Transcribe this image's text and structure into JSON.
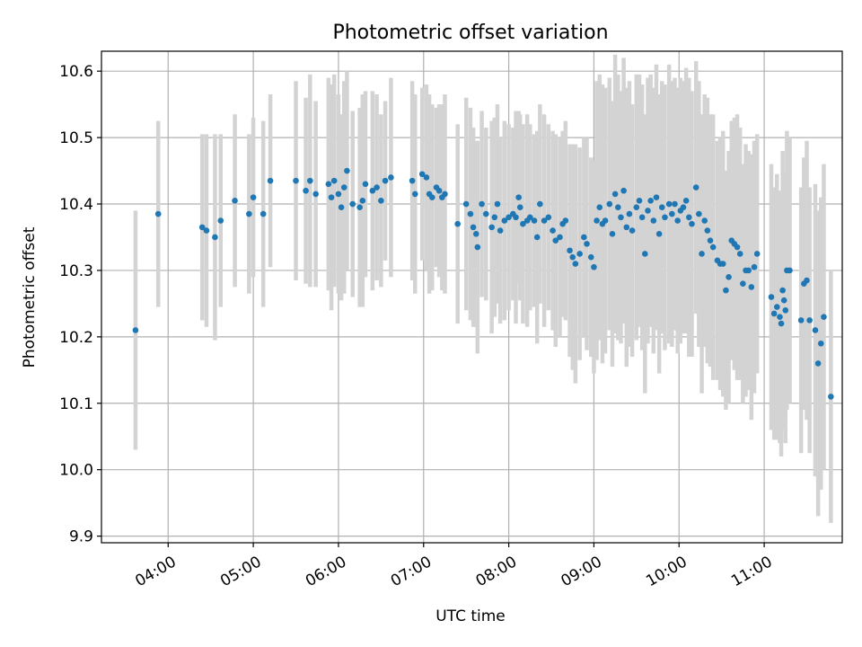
{
  "chart_data": {
    "type": "scatter",
    "title": "Photometric offset variation",
    "xlabel": "UTC time",
    "ylabel": "Photometric offset",
    "xlim": [
      "03:13",
      "11:55"
    ],
    "ylim": [
      9.89,
      10.63
    ],
    "x_ticks": [
      "04:00",
      "05:00",
      "06:00",
      "07:00",
      "08:00",
      "09:00",
      "10:00",
      "11:00"
    ],
    "y_ticks": [
      9.9,
      10.0,
      10.1,
      10.2,
      10.3,
      10.4,
      10.5,
      10.6
    ],
    "grid": true,
    "marker_color": "#1f77b4",
    "errorbar_color": "#d3d3d3",
    "series": [
      {
        "points": [
          [
            "03:37",
            10.21,
            0.18
          ],
          [
            "03:53",
            10.385,
            0.14
          ],
          [
            "04:24",
            10.365,
            0.14
          ],
          [
            "04:27",
            10.36,
            0.145
          ],
          [
            "04:33",
            10.35,
            0.155
          ],
          [
            "04:37",
            10.375,
            0.13
          ],
          [
            "04:47",
            10.405,
            0.13
          ],
          [
            "04:57",
            10.385,
            0.12
          ],
          [
            "05:00",
            10.41,
            0.12
          ],
          [
            "05:07",
            10.385,
            0.14
          ],
          [
            "05:12",
            10.435,
            0.13
          ],
          [
            "05:30",
            10.435,
            0.15
          ],
          [
            "05:37",
            10.42,
            0.14
          ],
          [
            "05:40",
            10.435,
            0.16
          ],
          [
            "05:44",
            10.415,
            0.14
          ],
          [
            "05:53",
            10.43,
            0.16
          ],
          [
            "05:55",
            10.41,
            0.17
          ],
          [
            "05:57",
            10.435,
            0.16
          ],
          [
            "06:00",
            10.415,
            0.15
          ],
          [
            "06:02",
            10.395,
            0.14
          ],
          [
            "06:04",
            10.425,
            0.16
          ],
          [
            "06:06",
            10.45,
            0.15
          ],
          [
            "06:10",
            10.4,
            0.14
          ],
          [
            "06:15",
            10.395,
            0.15
          ],
          [
            "06:17",
            10.405,
            0.16
          ],
          [
            "06:19",
            10.43,
            0.14
          ],
          [
            "06:24",
            10.42,
            0.15
          ],
          [
            "06:27",
            10.425,
            0.14
          ],
          [
            "06:30",
            10.405,
            0.13
          ],
          [
            "06:33",
            10.435,
            0.12
          ],
          [
            "06:37",
            10.44,
            0.15
          ],
          [
            "06:52",
            10.435,
            0.15
          ],
          [
            "06:54",
            10.415,
            0.15
          ],
          [
            "06:59",
            10.445,
            0.13
          ],
          [
            "07:02",
            10.44,
            0.14
          ],
          [
            "07:04",
            10.415,
            0.15
          ],
          [
            "07:06",
            10.41,
            0.14
          ],
          [
            "07:09",
            10.425,
            0.12
          ],
          [
            "07:11",
            10.42,
            0.13
          ],
          [
            "07:13",
            10.41,
            0.14
          ],
          [
            "07:15",
            10.415,
            0.15
          ],
          [
            "07:24",
            10.37,
            0.15
          ],
          [
            "07:30",
            10.4,
            0.16
          ],
          [
            "07:33",
            10.385,
            0.16
          ],
          [
            "07:35",
            10.365,
            0.15
          ],
          [
            "07:37",
            10.355,
            0.14
          ],
          [
            "07:38",
            10.335,
            0.16
          ],
          [
            "07:41",
            10.4,
            0.14
          ],
          [
            "07:44",
            10.385,
            0.13
          ],
          [
            "07:48",
            10.365,
            0.16
          ],
          [
            "07:50",
            10.38,
            0.15
          ],
          [
            "07:52",
            10.4,
            0.15
          ],
          [
            "07:54",
            10.36,
            0.14
          ],
          [
            "07:57",
            10.375,
            0.15
          ],
          [
            "08:00",
            10.38,
            0.14
          ],
          [
            "08:03",
            10.385,
            0.13
          ],
          [
            "08:05",
            10.38,
            0.16
          ],
          [
            "08:07",
            10.41,
            0.13
          ],
          [
            "08:08",
            10.395,
            0.14
          ],
          [
            "08:10",
            10.37,
            0.15
          ],
          [
            "08:13",
            10.375,
            0.16
          ],
          [
            "08:15",
            10.38,
            0.14
          ],
          [
            "08:18",
            10.375,
            0.13
          ],
          [
            "08:20",
            10.35,
            0.16
          ],
          [
            "08:22",
            10.4,
            0.15
          ],
          [
            "08:25",
            10.375,
            0.16
          ],
          [
            "08:28",
            10.38,
            0.14
          ],
          [
            "08:31",
            10.36,
            0.15
          ],
          [
            "08:33",
            10.345,
            0.16
          ],
          [
            "08:36",
            10.35,
            0.15
          ],
          [
            "08:38",
            10.37,
            0.14
          ],
          [
            "08:40",
            10.375,
            0.15
          ],
          [
            "08:43",
            10.33,
            0.16
          ],
          [
            "08:45",
            10.32,
            0.17
          ],
          [
            "08:47",
            10.31,
            0.18
          ],
          [
            "08:50",
            10.325,
            0.16
          ],
          [
            "08:53",
            10.35,
            0.15
          ],
          [
            "08:55",
            10.34,
            0.16
          ],
          [
            "08:58",
            10.32,
            0.15
          ],
          [
            "09:00",
            10.305,
            0.16
          ],
          [
            "09:02",
            10.375,
            0.21
          ],
          [
            "09:04",
            10.395,
            0.2
          ],
          [
            "09:06",
            10.37,
            0.21
          ],
          [
            "09:08",
            10.375,
            0.2
          ],
          [
            "09:11",
            10.4,
            0.19
          ],
          [
            "09:13",
            10.355,
            0.2
          ],
          [
            "09:15",
            10.415,
            0.21
          ],
          [
            "09:17",
            10.395,
            0.2
          ],
          [
            "09:19",
            10.38,
            0.19
          ],
          [
            "09:21",
            10.42,
            0.2
          ],
          [
            "09:23",
            10.365,
            0.21
          ],
          [
            "09:25",
            10.385,
            0.2
          ],
          [
            "09:27",
            10.36,
            0.19
          ],
          [
            "09:30",
            10.395,
            0.2
          ],
          [
            "09:32",
            10.405,
            0.19
          ],
          [
            "09:34",
            10.38,
            0.2
          ],
          [
            "09:36",
            10.325,
            0.21
          ],
          [
            "09:38",
            10.39,
            0.2
          ],
          [
            "09:40",
            10.405,
            0.19
          ],
          [
            "09:42",
            10.375,
            0.2
          ],
          [
            "09:44",
            10.41,
            0.2
          ],
          [
            "09:46",
            10.355,
            0.21
          ],
          [
            "09:48",
            10.395,
            0.19
          ],
          [
            "09:50",
            10.38,
            0.2
          ],
          [
            "09:53",
            10.4,
            0.21
          ],
          [
            "09:55",
            10.385,
            0.2
          ],
          [
            "09:57",
            10.4,
            0.19
          ],
          [
            "09:59",
            10.375,
            0.2
          ],
          [
            "10:01",
            10.39,
            0.2
          ],
          [
            "10:03",
            10.395,
            0.19
          ],
          [
            "10:05",
            10.405,
            0.2
          ],
          [
            "10:07",
            10.38,
            0.21
          ],
          [
            "10:09",
            10.37,
            0.2
          ],
          [
            "10:12",
            10.425,
            0.19
          ],
          [
            "10:14",
            10.385,
            0.2
          ],
          [
            "10:16",
            10.325,
            0.21
          ],
          [
            "10:18",
            10.375,
            0.19
          ],
          [
            "10:20",
            10.36,
            0.2
          ],
          [
            "10:22",
            10.345,
            0.19
          ],
          [
            "10:24",
            10.335,
            0.2
          ],
          [
            "10:27",
            10.315,
            0.18
          ],
          [
            "10:29",
            10.31,
            0.19
          ],
          [
            "10:31",
            10.31,
            0.2
          ],
          [
            "10:33",
            10.27,
            0.18
          ],
          [
            "10:35",
            10.29,
            0.19
          ],
          [
            "10:37",
            10.345,
            0.18
          ],
          [
            "10:39",
            10.34,
            0.19
          ],
          [
            "10:41",
            10.335,
            0.2
          ],
          [
            "10:43",
            10.325,
            0.19
          ],
          [
            "10:45",
            10.28,
            0.18
          ],
          [
            "10:47",
            10.3,
            0.19
          ],
          [
            "10:49",
            10.3,
            0.18
          ],
          [
            "10:51",
            10.275,
            0.2
          ],
          [
            "10:53",
            10.305,
            0.19
          ],
          [
            "10:55",
            10.325,
            0.18
          ],
          [
            "11:05",
            10.26,
            0.2
          ],
          [
            "11:07",
            10.235,
            0.19
          ],
          [
            "11:09",
            10.245,
            0.2
          ],
          [
            "11:11",
            10.23,
            0.19
          ],
          [
            "11:12",
            10.22,
            0.2
          ],
          [
            "11:13",
            10.27,
            0.21
          ],
          [
            "11:14",
            10.255,
            0.19
          ],
          [
            "11:15",
            10.24,
            0.2
          ],
          [
            "11:16",
            10.3,
            0.21
          ],
          [
            "11:18",
            10.3,
            0.2
          ],
          [
            "11:26",
            10.225,
            0.2
          ],
          [
            "11:28",
            10.28,
            0.19
          ],
          [
            "11:30",
            10.285,
            0.21
          ],
          [
            "11:32",
            10.225,
            0.2
          ],
          [
            "11:36",
            10.21,
            0.22
          ],
          [
            "11:38",
            10.16,
            0.23
          ],
          [
            "11:40",
            10.19,
            0.22
          ],
          [
            "11:42",
            10.23,
            0.23
          ],
          [
            "11:47",
            10.11,
            0.19
          ]
        ]
      }
    ]
  }
}
